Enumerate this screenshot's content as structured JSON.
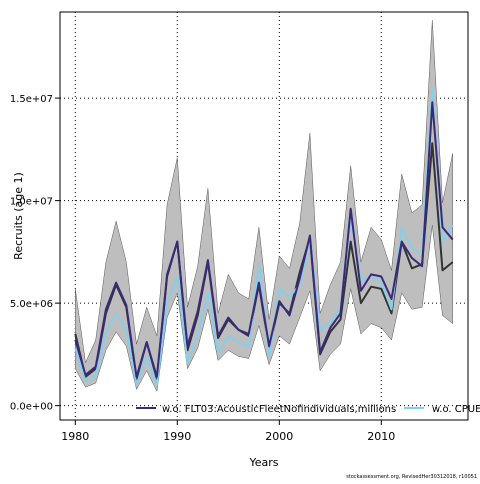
{
  "chart_data": {
    "type": "line",
    "title": "",
    "xlabel": "Years",
    "ylabel": "Recruits (age 1)",
    "xlim": [
      1978.5,
      2018.5
    ],
    "ylim": [
      -700000,
      19200000
    ],
    "x_ticks": [
      1980,
      1990,
      2000,
      2010
    ],
    "x_tick_labels": [
      "1980",
      "1990",
      "2000",
      "2010"
    ],
    "y_ticks": [
      0,
      5000000,
      10000000,
      15000000
    ],
    "y_tick_labels": [
      "0.0e+00",
      "5.0e+06",
      "1.0e+07",
      "1.5e+07"
    ],
    "grid": true,
    "legend_position": "bottom",
    "x": [
      1980,
      1981,
      1982,
      1983,
      1984,
      1985,
      1986,
      1987,
      1988,
      1989,
      1990,
      1991,
      1992,
      1993,
      1994,
      1995,
      1996,
      1997,
      1998,
      1999,
      2000,
      2001,
      2002,
      2003,
      2004,
      2005,
      2006,
      2007,
      2008,
      2009,
      2010,
      2011,
      2012,
      2013,
      2014,
      2015,
      2016,
      2017
    ],
    "band": {
      "upper": [
        5700000,
        2100000,
        3200000,
        7000000,
        9000000,
        7000000,
        3000000,
        4800000,
        3400000,
        9800000,
        12100000,
        4800000,
        6800000,
        10600000,
        4500000,
        6400000,
        5500000,
        5200000,
        8700000,
        4200000,
        7300000,
        6700000,
        8900000,
        13300000,
        4500000,
        5900000,
        7000000,
        11700000,
        7000000,
        8700000,
        8100000,
        6600000,
        11300000,
        9400000,
        9800000,
        18800000,
        9900000,
        12300000
      ],
      "lower": [
        1800000,
        900000,
        1100000,
        2700000,
        3600000,
        2900000,
        800000,
        1700000,
        700000,
        4300000,
        5500000,
        1800000,
        2800000,
        4700000,
        2200000,
        2700000,
        2400000,
        2300000,
        3900000,
        2000000,
        3400000,
        3000000,
        4300000,
        5600000,
        1700000,
        2500000,
        3000000,
        5700000,
        3500000,
        4000000,
        3800000,
        3200000,
        5500000,
        4700000,
        4800000,
        8800000,
        4400000,
        4000000
      ]
    },
    "series": [
      {
        "values": [
          3500000,
          1400000,
          1800000,
          4500000,
          5900000,
          4800000,
          1300000,
          3100000,
          1300000,
          6300000,
          8000000,
          2700000,
          4400000,
          7000000,
          3300000,
          4200000,
          3700000,
          3400000,
          5900000,
          2800000,
          5000000,
          4500000,
          6500000,
          8200000,
          2500000,
          3600000,
          4200000,
          8000000,
          5000000,
          5800000,
          5700000,
          4500000,
          8000000,
          6700000,
          6900000,
          12800000,
          6600000,
          7000000
        ],
        "color": "#333333"
      },
      {
        "name": "w.o. FLT03:AcousticFleetNofindividuals,millions",
        "values": [
          3200000,
          1500000,
          1900000,
          4700000,
          6000000,
          4900000,
          1400000,
          3100000,
          1400000,
          6400000,
          8000000,
          2900000,
          4600000,
          7100000,
          3400000,
          4300000,
          3700000,
          3500000,
          6000000,
          2900000,
          5100000,
          4400000,
          6200000,
          8300000,
          2600000,
          3800000,
          4500000,
          9600000,
          5600000,
          6400000,
          6300000,
          5200000,
          8000000,
          7200000,
          6800000,
          14800000,
          8700000,
          8100000
        ],
        "color": "#3a2a7a"
      },
      {
        "name": "w.o. CPUE",
        "values": [
          2800000,
          1200000,
          1500000,
          3600000,
          4500000,
          3700000,
          1000000,
          2400000,
          1000000,
          5000000,
          6300000,
          2100000,
          3500000,
          5500000,
          2600000,
          3400000,
          3100000,
          2900000,
          6900000,
          2400000,
          5700000,
          5300000,
          5900000,
          8100000,
          3700000,
          4100000,
          4700000,
          9200000,
          6100000,
          6300000,
          6000000,
          4700000,
          8700000,
          7700000,
          7400000,
          15500000,
          8000000,
          8800000
        ],
        "color": "#87ceeb"
      }
    ],
    "band_color": "#bebebe"
  },
  "footer": {
    "text": "stockassessment.org, RevisedHer30312018, r10051"
  }
}
